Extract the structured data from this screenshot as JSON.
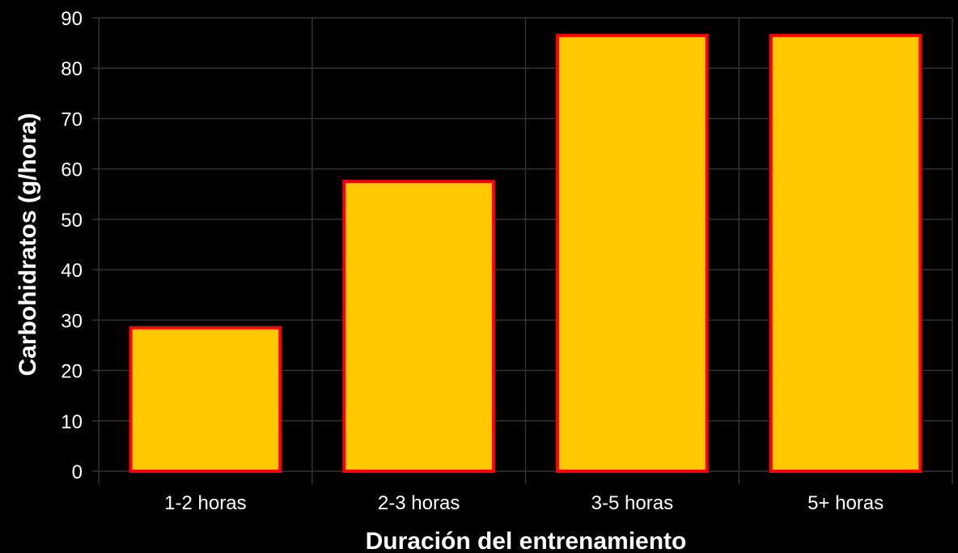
{
  "chart_data": {
    "type": "bar",
    "xlabel": "Duración del entrenamiento",
    "ylabel": "Carbohidratos (g/hora)",
    "ylim": [
      0,
      90
    ],
    "yticks": [
      0,
      10,
      20,
      30,
      40,
      50,
      60,
      70,
      80,
      90
    ],
    "categories": [
      "1-2 horas",
      "2-3 horas",
      "3-5 horas",
      "5+ horas"
    ],
    "values": [
      28.5,
      57.5,
      86.5,
      86.5
    ],
    "grid": true,
    "colors": {
      "background": "#000000",
      "bar_fill": "#FFC800",
      "bar_edge": "#FF0000",
      "grid": "#333333",
      "text": "#ffffff"
    }
  }
}
